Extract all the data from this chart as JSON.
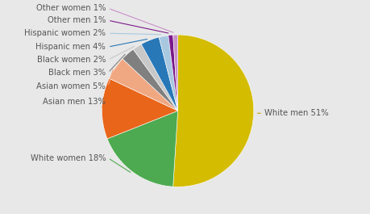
{
  "labels": [
    "White men 51%",
    "White women 18%",
    "Asian men 13%",
    "Asian women 5%",
    "Black men 3%",
    "Black women 2%",
    "Hispanic men 4%",
    "Hispanic women 2%",
    "Other men 1%",
    "Other women 1%"
  ],
  "values": [
    51,
    18,
    13,
    5,
    3,
    2,
    4,
    2,
    1,
    1
  ],
  "colors": [
    "#d4bc00",
    "#4daa50",
    "#e8651a",
    "#f0a882",
    "#808080",
    "#c8c8c8",
    "#2878b8",
    "#a8c8e0",
    "#7a1a8a",
    "#c890c8"
  ],
  "background_color": "#e8e8e8",
  "label_fontsize": 7.2,
  "label_color": "#555555",
  "line_color": "#aaaaaa"
}
